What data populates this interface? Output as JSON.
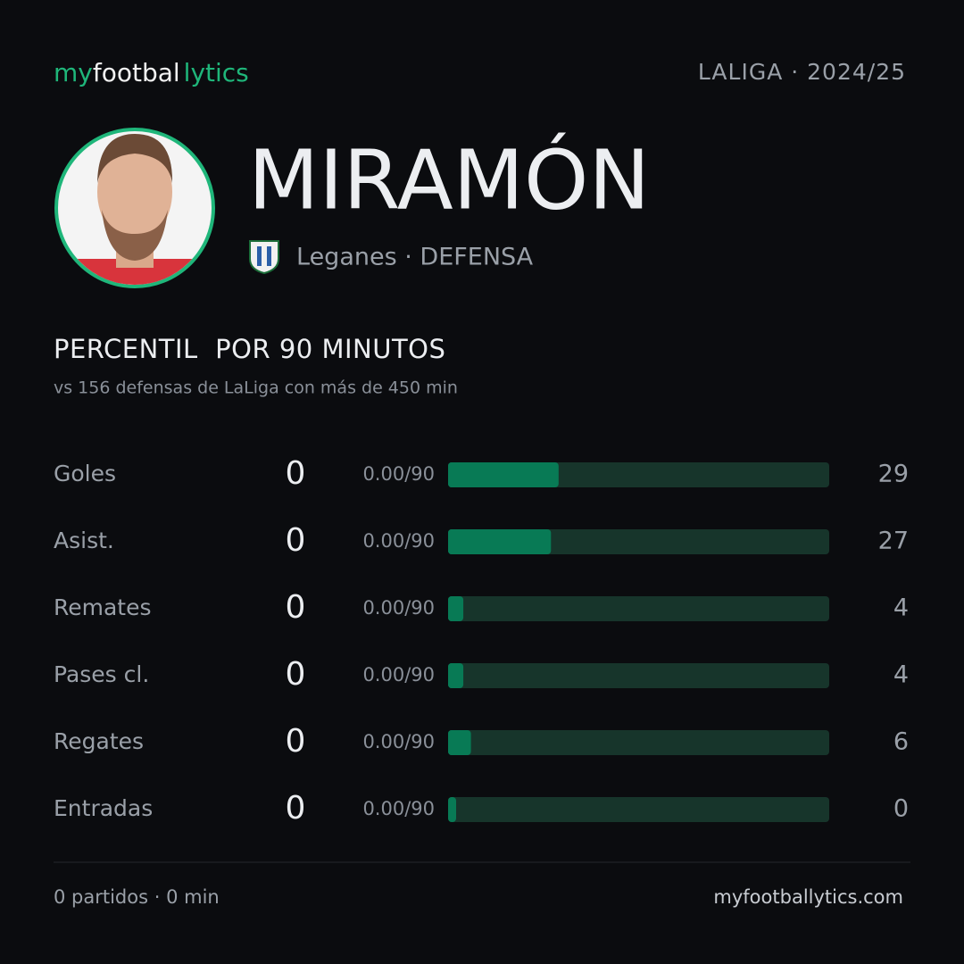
{
  "header": {
    "logo": [
      "my",
      "footbal",
      "lytics"
    ],
    "league": "LALIGA · 2024/25",
    "player": "MIRAMÓN",
    "team_line": "Leganes · DEFENSA"
  },
  "chart_data": {
    "type": "bar",
    "title": "PERCENTIL  POR 90 MINUTOS",
    "subtitle": "vs 156 defensas de LaLiga con más de 450 min",
    "categories": [
      "Goles",
      "Asist.",
      "Remates",
      "Pases cl.",
      "Regates",
      "Entradas"
    ],
    "totals": [
      0,
      0,
      0,
      0,
      0,
      0
    ],
    "per90": [
      "0.00/90",
      "0.00/90",
      "0.00/90",
      "0.00/90",
      "0.00/90",
      "0.00/90"
    ],
    "values": [
      29,
      27,
      4,
      4,
      6,
      0
    ],
    "xlim": [
      0,
      100
    ],
    "color": "#087a55",
    "track_color": "#17352b"
  },
  "footer": {
    "summary": "0 partidos · 0 min",
    "site": "myfootballytics.com"
  }
}
